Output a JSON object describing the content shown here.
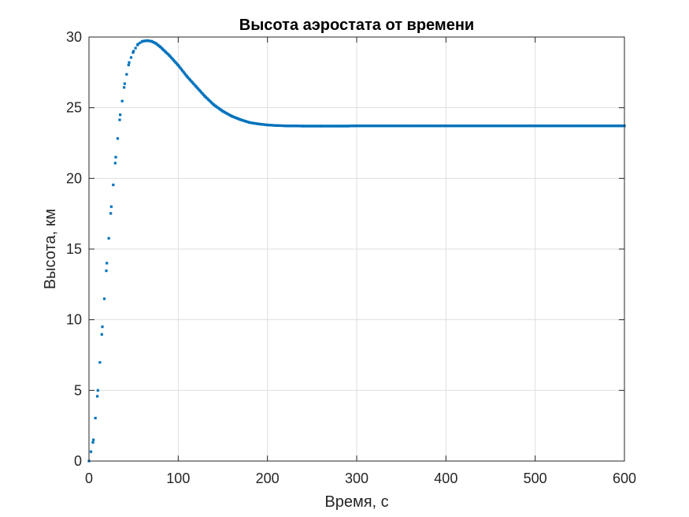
{
  "chart_data": {
    "type": "scatter",
    "title": "Высота аэростата от времени",
    "xlabel": "Время, с",
    "ylabel": "Высота, км",
    "xlim": [
      0,
      600
    ],
    "ylim": [
      0,
      30
    ],
    "xticks": [
      "0",
      "100",
      "200",
      "300",
      "400",
      "500",
      "600"
    ],
    "yticks": [
      "0",
      "5",
      "10",
      "15",
      "20",
      "25",
      "30"
    ],
    "grid": true,
    "marker_color": "#0072BD",
    "series": [
      {
        "x": [
          0,
          5,
          10,
          15,
          20,
          25,
          30,
          35,
          40,
          45,
          50,
          55,
          60,
          65,
          70,
          75,
          80,
          90,
          100,
          110,
          120,
          130,
          140,
          150,
          160,
          170,
          180,
          190,
          200,
          210,
          220,
          240,
          260,
          280,
          290,
          300,
          350,
          400,
          450,
          500,
          550,
          600
        ],
        "values": [
          0,
          1.5,
          5.0,
          9.5,
          14.0,
          18.0,
          21.5,
          24.5,
          26.7,
          28.2,
          29.0,
          29.5,
          29.7,
          29.75,
          29.7,
          29.55,
          29.3,
          28.7,
          28.0,
          27.2,
          26.5,
          25.8,
          25.2,
          24.75,
          24.4,
          24.15,
          23.95,
          23.85,
          23.78,
          23.74,
          23.72,
          23.7,
          23.7,
          23.7,
          23.7,
          23.72,
          23.72,
          23.72,
          23.72,
          23.72,
          23.72,
          23.72
        ]
      }
    ]
  }
}
